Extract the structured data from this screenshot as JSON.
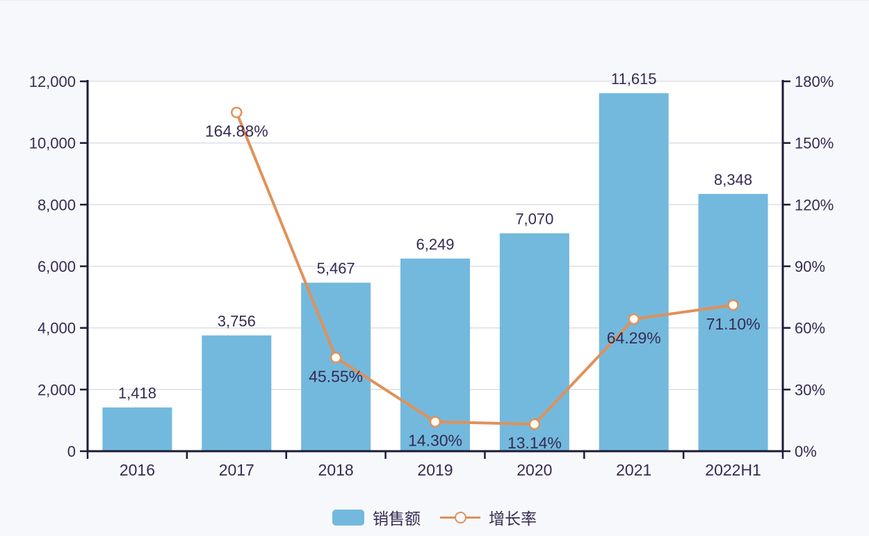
{
  "colors": {
    "page_bg": "#f7f8fb",
    "plot_bg": "#ffffff",
    "grid": "#d9dce4",
    "axis": "#1d1a38",
    "text": "#362b52",
    "bar": "#73b9dd",
    "line": "#e0915a",
    "marker_fill": "#fffdf6"
  },
  "chart_data": {
    "type": "bar+line",
    "title": "",
    "categories": [
      "2016",
      "2017",
      "2018",
      "2019",
      "2020",
      "2021",
      "2022H1"
    ],
    "series": [
      {
        "name": "销售额",
        "chart": "bar",
        "axis": "left",
        "values": [
          1418,
          3756,
          5467,
          6249,
          7070,
          11615,
          8348
        ],
        "value_labels": [
          "1,418",
          "3,756",
          "5,467",
          "6,249",
          "7,070",
          "11,615",
          "8,348"
        ]
      },
      {
        "name": "增长率",
        "chart": "line",
        "axis": "right",
        "values": [
          null,
          164.88,
          45.55,
          14.3,
          13.14,
          64.29,
          71.1
        ],
        "value_labels": [
          "",
          "164.88%",
          "45.55%",
          "14.30%",
          "13.14%",
          "64.29%",
          "71.10%"
        ]
      }
    ],
    "left_axis": {
      "min": 0,
      "max": 12000,
      "step": 2000,
      "tick_labels": [
        "0",
        "2,000",
        "4,000",
        "6,000",
        "8,000",
        "10,000",
        "12,000"
      ]
    },
    "right_axis": {
      "min": 0,
      "max": 180,
      "step": 30,
      "tick_labels": [
        "0%",
        "30%",
        "60%",
        "90%",
        "120%",
        "150%",
        "180%"
      ]
    },
    "grid": true,
    "legend": {
      "position": "bottom",
      "items": [
        {
          "label": "销售额",
          "marker": "bar"
        },
        {
          "label": "增长率",
          "marker": "line-circle"
        }
      ]
    }
  }
}
